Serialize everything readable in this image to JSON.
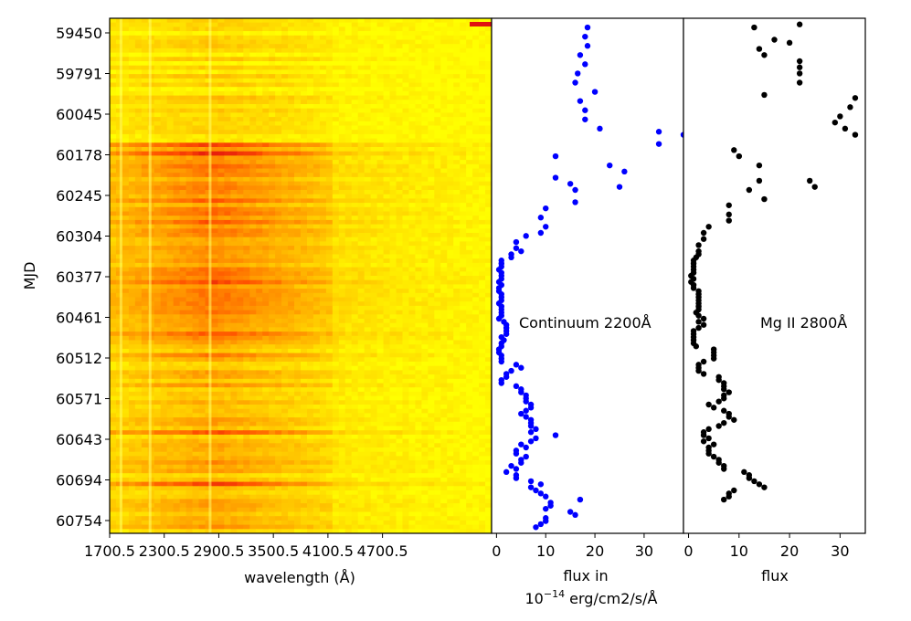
{
  "chart_data": [
    {
      "type": "heatmap",
      "title": "",
      "xlabel": "wavelength (Å)",
      "ylabel": "MJD",
      "x_tick_labels": [
        "1700.5",
        "2300.5",
        "2900.5",
        "3500.5",
        "4100.5",
        "4700.5"
      ],
      "x_ticks": [
        1700.5,
        2300.5,
        2900.5,
        3500.5,
        4100.5,
        4700.5
      ],
      "xlim": [
        1700.5,
        5900
      ],
      "y_tick_labels": [
        "59450",
        "59791",
        "60045",
        "60178",
        "60245",
        "60304",
        "60377",
        "60461",
        "60512",
        "60571",
        "60643",
        "60694",
        "60754"
      ],
      "colormap": [
        "#ffff00",
        "#ffc800",
        "#ff9000",
        "#ff5000",
        "#e01010"
      ],
      "bright_bands": [
        {
          "wavelength": 1820,
          "label": ""
        },
        {
          "wavelength": 2140,
          "label": ""
        },
        {
          "wavelength": 2800,
          "label": ""
        }
      ]
    },
    {
      "type": "scatter",
      "annotation": "Continuum 2200Å",
      "xlabel_line1": "flux in",
      "xlabel_line2_base": "10",
      "xlabel_line2_exp": "−14",
      "xlabel_line2_rest": " erg/cm2/s/Å",
      "x_tick_labels": [
        "0",
        "10",
        "20",
        "30"
      ],
      "x_ticks": [
        0,
        10,
        20,
        30
      ],
      "xlim": [
        -1,
        38
      ],
      "color": "#0000ff",
      "series": [
        {
          "x": [
            18.5,
            18,
            18.5,
            17,
            18,
            16.5,
            16,
            20,
            17,
            18,
            18,
            33,
            33,
            21,
            38,
            12,
            23,
            12,
            26,
            15,
            16,
            16,
            25,
            10,
            9,
            10,
            9,
            6,
            4,
            4,
            5,
            3,
            3,
            1,
            1,
            1,
            0.5,
            1,
            1,
            1,
            0.5,
            1,
            0.5,
            0.5,
            1,
            1,
            1,
            0.5,
            1,
            1,
            1,
            1,
            0.5,
            1.5,
            2,
            2,
            2,
            2,
            1,
            1.5,
            1,
            1,
            0.5,
            0.5,
            1,
            1,
            1,
            4,
            5,
            3,
            2,
            2,
            1,
            1,
            4,
            5,
            5,
            6,
            6,
            6,
            7,
            7,
            6,
            5,
            6,
            7,
            7,
            7,
            8,
            7,
            12,
            8,
            7,
            5,
            6,
            4,
            4,
            6,
            5,
            5,
            3,
            4,
            2,
            4,
            4,
            7,
            9,
            7,
            8,
            9,
            10,
            17,
            11,
            11,
            10,
            15,
            16,
            10,
            10,
            9,
            8
          ],
          "y": [
            59430,
            59460,
            59490,
            59520,
            59550,
            59580,
            59610,
            59640,
            59670,
            59700,
            59730,
            59770,
            59810,
            59760,
            59780,
            59850,
            59880,
            59920,
            59900,
            59940,
            59960,
            60000,
            59950,
            60020,
            60050,
            60080,
            60100,
            60110,
            60130,
            60150,
            60160,
            60170,
            60180,
            60190,
            60200,
            60210,
            60220,
            60230,
            60240,
            60250,
            60260,
            60270,
            60280,
            60290,
            60300,
            60310,
            60320,
            60330,
            60340,
            60350,
            60360,
            60370,
            60380,
            60390,
            60400,
            60410,
            60420,
            60430,
            60440,
            60450,
            60460,
            60470,
            60480,
            60490,
            60500,
            60510,
            60520,
            60530,
            60540,
            60550,
            60560,
            60570,
            60580,
            60590,
            60600,
            60610,
            60620,
            60630,
            60640,
            60650,
            60660,
            60670,
            60680,
            60690,
            60700,
            60710,
            60720,
            60730,
            60740,
            60750,
            60760,
            60770,
            60780,
            60790,
            60800,
            60810,
            60820,
            60830,
            60840,
            60850,
            60860,
            60870,
            60880,
            60890,
            60900,
            60910,
            60920,
            60930,
            60940,
            60950,
            60960,
            60970,
            60980,
            60990,
            61000,
            61010,
            61020,
            61030,
            61040,
            61050,
            61060
          ]
        }
      ]
    },
    {
      "type": "scatter",
      "annotation": "Mg II 2800Å",
      "xlabel": "flux",
      "x_tick_labels": [
        "0",
        "10",
        "20",
        "30"
      ],
      "x_ticks": [
        0,
        10,
        20,
        30
      ],
      "xlim": [
        -1,
        35
      ],
      "color": "#000000",
      "series": [
        {
          "x": [
            13,
            22,
            14,
            15,
            17,
            20,
            22,
            22,
            22,
            22,
            15,
            33,
            32,
            30,
            29,
            31,
            33,
            9,
            10,
            14,
            14,
            12,
            25,
            24,
            15,
            8,
            8,
            8,
            4,
            3,
            3,
            2,
            2,
            2,
            1.5,
            1,
            1,
            1,
            1,
            1,
            0.5,
            1,
            0.5,
            1,
            1,
            2,
            2,
            2,
            2,
            2,
            2,
            2,
            1.5,
            2,
            3,
            2,
            3,
            2,
            1,
            1,
            1,
            1,
            1,
            1.5,
            5,
            5,
            5,
            5,
            3,
            2,
            2,
            2,
            3,
            6,
            6,
            7,
            7,
            7,
            8,
            7,
            7,
            6,
            4,
            5,
            7,
            8,
            8,
            9,
            7,
            6,
            4,
            3,
            3,
            4,
            3,
            5,
            4,
            4,
            4,
            5,
            6,
            6,
            7,
            7,
            11,
            12,
            12,
            13,
            14,
            15,
            9,
            8,
            8,
            7
          ],
          "y": [
            59430,
            59420,
            59500,
            59520,
            59470,
            59480,
            59540,
            59560,
            59580,
            59610,
            59650,
            59660,
            59690,
            59720,
            59740,
            59760,
            59780,
            59830,
            59850,
            59880,
            59930,
            59960,
            59950,
            59930,
            59990,
            60010,
            60040,
            60060,
            60080,
            60100,
            60120,
            60140,
            60160,
            60170,
            60180,
            60190,
            60200,
            60210,
            60220,
            60230,
            60240,
            60250,
            60260,
            60270,
            60280,
            60290,
            60300,
            60310,
            60320,
            60330,
            60340,
            60350,
            60360,
            60370,
            60380,
            60390,
            60400,
            60410,
            60420,
            60430,
            60440,
            60450,
            60460,
            60470,
            60480,
            60490,
            60500,
            60510,
            60520,
            60530,
            60540,
            60550,
            60560,
            60570,
            60580,
            60590,
            60600,
            60610,
            60620,
            60630,
            60640,
            60650,
            60660,
            60670,
            60680,
            60690,
            60700,
            60710,
            60720,
            60730,
            60740,
            60750,
            60760,
            60770,
            60780,
            60790,
            60800,
            60810,
            60820,
            60830,
            60840,
            60850,
            60860,
            60870,
            60880,
            60890,
            60900,
            60910,
            60920,
            60930,
            60940,
            60950,
            60960,
            60970
          ]
        }
      ]
    }
  ]
}
